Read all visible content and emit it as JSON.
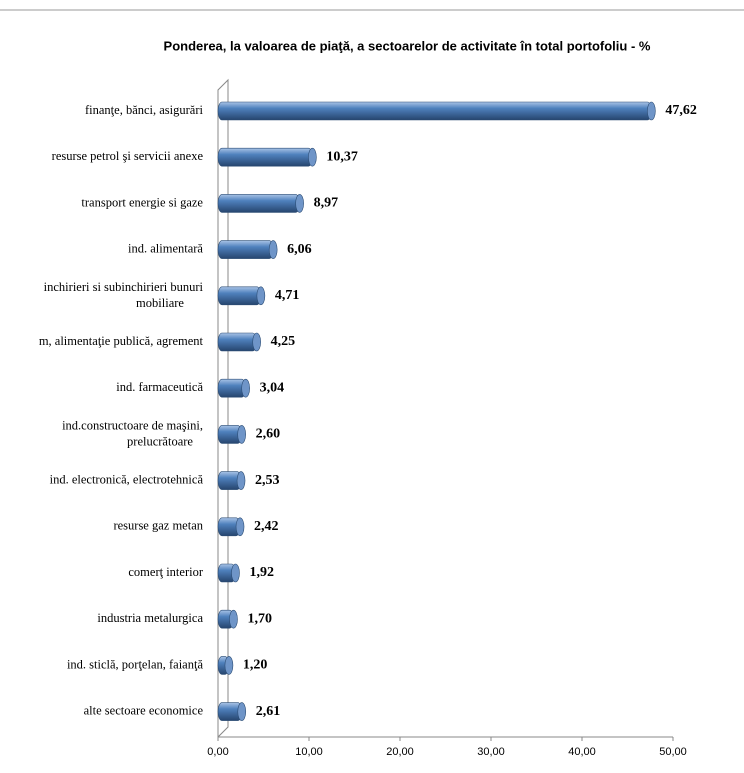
{
  "chart_data": {
    "type": "bar",
    "orientation": "horizontal",
    "title": "Ponderea, la valoarea de piaţă, a sectoarelor de activitate în total portofoliu - %",
    "categories": [
      "finanţe, bănci, asigurări",
      "resurse petrol şi servicii anexe",
      "transport energie si gaze",
      "ind. alimentară",
      "inchirieri si subinchirieri bunuri mobiliare",
      "m, alimentaţie publică, agrement",
      "ind. farmaceutică",
      "ind.constructoare de maşini, prelucrătoare",
      "ind. electronică, electrotehnică",
      "resurse gaz metan",
      "comerţ interior",
      "industria metalurgica",
      "ind. sticlă, porţelan, faianţă",
      "alte sectoare economice"
    ],
    "values": [
      47.62,
      10.37,
      8.97,
      6.06,
      4.71,
      4.25,
      3.04,
      2.6,
      2.53,
      2.42,
      1.92,
      1.7,
      1.2,
      2.61
    ],
    "value_labels": [
      "47,62",
      "10,37",
      "8,97",
      "6,06",
      "4,71",
      "4,25",
      "3,04",
      "2,60",
      "2,53",
      "2,42",
      "1,92",
      "1,70",
      "1,20",
      "2,61"
    ],
    "color": "#4f81bd",
    "xlim": [
      0,
      50
    ],
    "xticks": [
      {
        "value": 0,
        "label": "0,00"
      },
      {
        "value": 10,
        "label": "10,00"
      },
      {
        "value": 20,
        "label": "20,00"
      },
      {
        "value": 30,
        "label": "30,00"
      },
      {
        "value": 40,
        "label": "40,00"
      },
      {
        "value": 50,
        "label": "50,00"
      }
    ]
  }
}
